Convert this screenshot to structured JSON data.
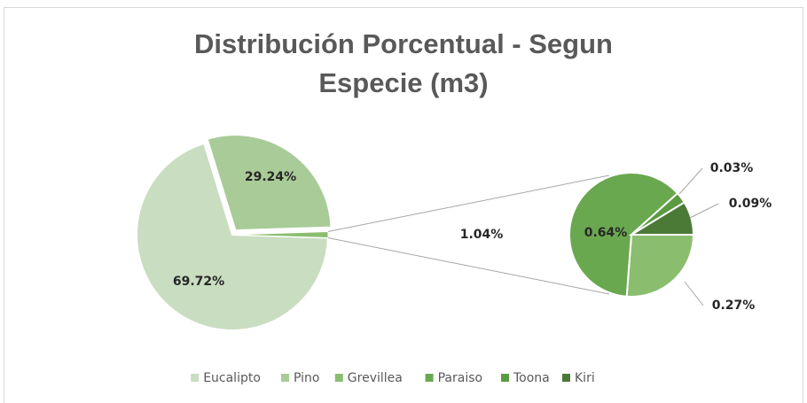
{
  "chart_data": {
    "type": "pie-of-pie",
    "title": "Distribución Porcentual - Segun Especie (m3)",
    "categories": [
      "Eucalipto",
      "Pino",
      "Grevillea",
      "Paraiso",
      "Toona",
      "Kiri"
    ],
    "values": [
      69.72,
      29.24,
      0.27,
      0.64,
      0.03,
      0.09
    ],
    "value_labels": [
      "69.72%",
      "29.24%",
      "0.27%",
      "0.64%",
      "0.03%",
      "0.09%"
    ],
    "colors": [
      "#c9ddc1",
      "#a9cb98",
      "#8bbd6f",
      "#6aa84f",
      "#5c9a42",
      "#4b7a37"
    ],
    "second_pie_count": 4,
    "other_value": 1.04,
    "other_label": "1.04%",
    "legend": "bottom"
  }
}
